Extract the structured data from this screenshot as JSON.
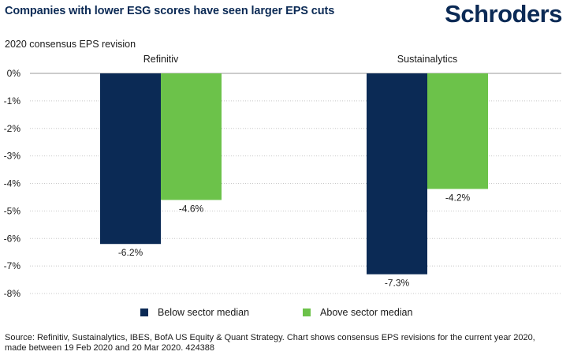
{
  "header": {
    "title": "Companies with lower ESG scores have seen larger EPS cuts",
    "logo_text": "Schroders"
  },
  "chart_data": {
    "type": "bar",
    "subtitle": "2020 consensus EPS revision",
    "categories": [
      "Refinitiv",
      "Sustainalytics"
    ],
    "series": [
      {
        "name": "Below sector median",
        "values": [
          -6.2,
          -7.3
        ],
        "labels": [
          "-6.2%",
          "-7.3%"
        ],
        "color": "#0b2a55"
      },
      {
        "name": "Above sector median",
        "values": [
          -4.6,
          -4.2
        ],
        "labels": [
          "-4.6%",
          "-4.2%"
        ],
        "color": "#6cc24a"
      }
    ],
    "y_ticks": [
      "0%",
      "-1%",
      "-2%",
      "-3%",
      "-4%",
      "-5%",
      "-6%",
      "-7%",
      "-8%"
    ],
    "ylim": [
      -8,
      0
    ],
    "grid": true,
    "legend_position": "bottom"
  },
  "source": "Source: Refinitiv, Sustainalytics, IBES, BofA US Equity & Quant Strategy. Chart shows consensus EPS revisions for the current year 2020, made between 19 Feb 2020 and 20 Mar 2020. 424388"
}
